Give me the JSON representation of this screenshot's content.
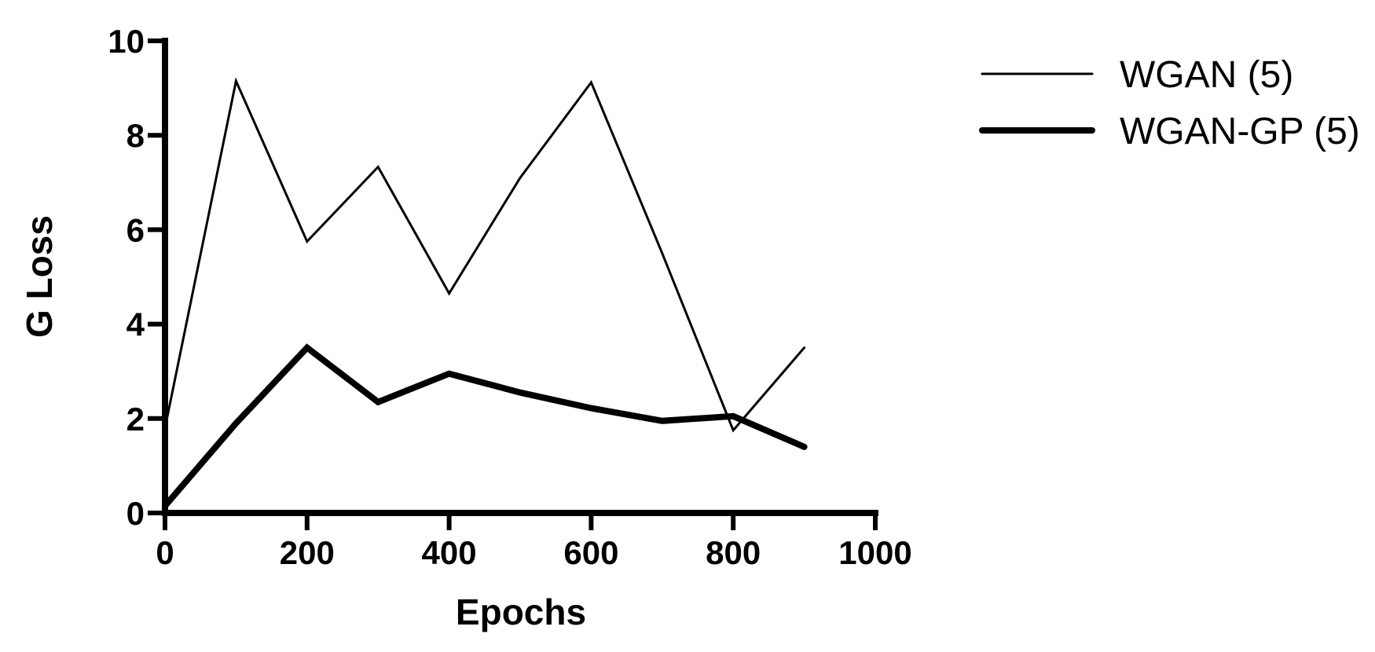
{
  "chart_data": {
    "type": "line",
    "title": "",
    "xlabel": "Epochs",
    "ylabel": "G Loss",
    "xlim": [
      0,
      1000
    ],
    "ylim": [
      0,
      10
    ],
    "x_ticks": [
      0,
      200,
      400,
      600,
      800,
      1000
    ],
    "y_ticks": [
      0,
      2,
      4,
      6,
      8,
      10
    ],
    "x_tick_labels": [
      "0",
      "200",
      "400",
      "600",
      "800",
      "1000"
    ],
    "y_tick_labels": [
      "0",
      "2",
      "4",
      "6",
      "8",
      "10"
    ],
    "grid": false,
    "legend_position": "top-right",
    "x": [
      0,
      100,
      200,
      300,
      400,
      500,
      600,
      700,
      800,
      900
    ],
    "series": [
      {
        "name": "WGAN (5)",
        "style": "thin",
        "color": "#000000",
        "values": [
          1.8,
          9.15,
          5.75,
          7.33,
          4.65,
          7.1,
          9.12,
          5.5,
          1.75,
          3.5
        ]
      },
      {
        "name": "WGAN-GP (5)",
        "style": "thick",
        "color": "#000000",
        "values": [
          0.15,
          1.9,
          3.5,
          2.35,
          2.95,
          2.55,
          2.22,
          1.95,
          2.05,
          1.4
        ]
      }
    ]
  }
}
